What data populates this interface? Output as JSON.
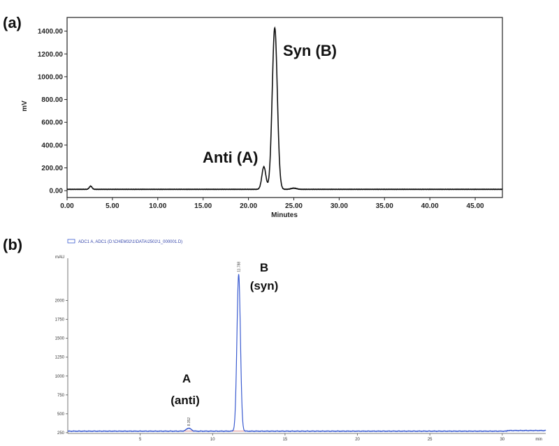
{
  "chart_data": [
    {
      "panel": "(a)",
      "type": "line",
      "ylabel": "mV",
      "xlabel": "Minutes",
      "xlim": [
        0,
        48
      ],
      "ylim": [
        -60,
        1520
      ],
      "x_ticks": [
        0,
        5,
        10,
        15,
        20,
        25,
        30,
        35,
        40,
        45
      ],
      "x_tick_labels": [
        "0.00",
        "5.00",
        "10.00",
        "15.00",
        "20.00",
        "25.00",
        "30.00",
        "35.00",
        "40.00",
        "45.00"
      ],
      "y_ticks": [
        0,
        200,
        400,
        600,
        800,
        1000,
        1200,
        1400
      ],
      "y_tick_labels": [
        "0.00",
        "200.00",
        "400.00",
        "600.00",
        "800.00",
        "1000.00",
        "1200.00",
        "1400.00"
      ],
      "baseline": 12,
      "peaks": [
        {
          "label": "Anti (A)",
          "x": 21.7,
          "height": 210,
          "width": 0.22
        },
        {
          "label": "Syn (B)",
          "x": 22.9,
          "height": 1430,
          "width": 0.28
        }
      ],
      "minor_peaks": [
        {
          "x": 2.6,
          "height": 28,
          "width": 0.15
        },
        {
          "x": 25.0,
          "height": 10,
          "width": 0.3
        }
      ],
      "grid": false,
      "legend": "none"
    },
    {
      "panel": "(b)",
      "type": "line",
      "ylabel": "mAU",
      "xlabel": "min",
      "xlim": [
        0,
        33
      ],
      "ylim": [
        240,
        2560
      ],
      "x_ticks": [
        5,
        10,
        15,
        20,
        25,
        30
      ],
      "x_tick_labels": [
        "5",
        "10",
        "15",
        "20",
        "25",
        "30"
      ],
      "y_ticks": [
        250,
        500,
        750,
        1000,
        1250,
        1500,
        1750,
        2000
      ],
      "y_tick_labels": [
        "250",
        "500",
        "750",
        "1000",
        "1250",
        "1500",
        "1750",
        "2000"
      ],
      "legend_entry": "ADC1 A, ADC1 (D:\\CHEM32\\1\\DATA\\2502\\1_000001.D)",
      "baseline": 270,
      "peaks": [
        {
          "label_top": "A",
          "label_bottom": "(anti)",
          "x": 8.35,
          "height": 310,
          "width": 0.16,
          "rt_label": "8.352"
        },
        {
          "label_top": "B",
          "label_bottom": "(syn)",
          "x": 11.8,
          "height": 2350,
          "width": 0.12,
          "rt_label": "11.788"
        }
      ],
      "color": "#3a5bd0",
      "grid": false,
      "legend": "top-left"
    }
  ]
}
